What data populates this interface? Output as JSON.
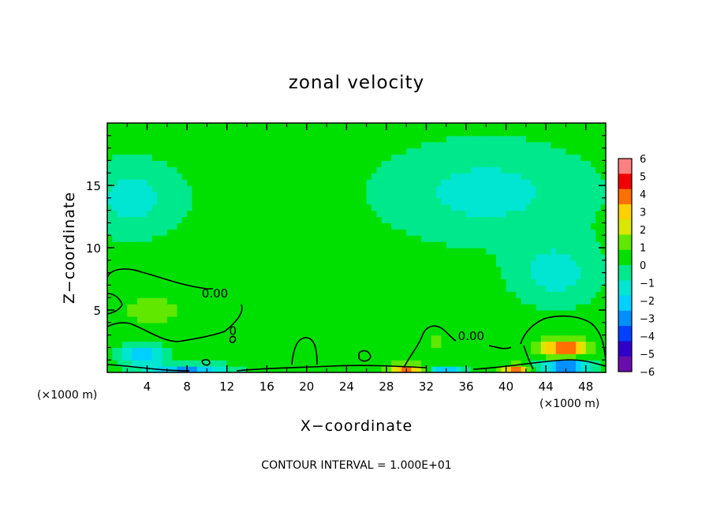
{
  "chart_data": {
    "type": "heatmap",
    "title": "zonal velocity",
    "xlabel": "X−coordinate",
    "ylabel": "Z−coordinate",
    "x_unit_left": "(×1000 m)",
    "x_unit_right": "(×1000 m)",
    "footer": "CONTOUR INTERVAL = 1.000E+01",
    "xlim": [
      0,
      50
    ],
    "ylim": [
      0,
      20
    ],
    "x_ticks": [
      4,
      8,
      12,
      16,
      20,
      24,
      28,
      32,
      36,
      40,
      44,
      48
    ],
    "x_tick_labels": [
      "4",
      "8",
      "12",
      "16",
      "20",
      "24",
      "28",
      "32",
      "36",
      "40",
      "44",
      "48"
    ],
    "y_ticks": [
      5,
      10,
      15
    ],
    "y_tick_labels": [
      "5",
      "10",
      "15"
    ],
    "colorbar": {
      "min": -6,
      "max": 6,
      "tick_values": [
        6,
        5,
        4,
        3,
        2,
        1,
        0,
        -1,
        -2,
        -3,
        -4,
        -5,
        -6
      ],
      "tick_labels": [
        "6",
        "5",
        "4",
        "3",
        "2",
        "1",
        "0",
        "−1",
        "−2",
        "−3",
        "−4",
        "−5",
        "−6"
      ],
      "colors": [
        "#6a0dad",
        "#2e00c8",
        "#0040ff",
        "#0090ff",
        "#00d0ff",
        "#00e6d2",
        "#00e88c",
        "#00e000",
        "#60e800",
        "#d8e800",
        "#ffd000",
        "#ff7000",
        "#f00000",
        "#ff8080"
      ]
    },
    "contour_labels": [
      {
        "text": "0.00",
        "x": 10.8,
        "z": 6.0
      },
      {
        "text": "0.00",
        "x": 36.5,
        "z": 2.6
      },
      {
        "text": "0",
        "x": 12.6,
        "z": 3.0
      }
    ],
    "background_value": 0.4,
    "features": [
      {
        "x": 2.5,
        "z": 14.0,
        "rx": 6.0,
        "rz": 3.5,
        "value": -1.2
      },
      {
        "x": 3.5,
        "z": 1.5,
        "rx": 2.5,
        "rz": 1.0,
        "value": -2.5
      },
      {
        "x": 4.5,
        "z": 5.0,
        "rx": 6.0,
        "rz": 2.2,
        "value": 1.0
      },
      {
        "x": 8.0,
        "z": 0.2,
        "rx": 5.0,
        "rz": 0.6,
        "value": -2.8
      },
      {
        "x": 20.0,
        "z": 1.8,
        "rx": 1.6,
        "rz": 1.6,
        "value": 0.8
      },
      {
        "x": 30.0,
        "z": 0.3,
        "rx": 2.0,
        "rz": 0.5,
        "value": 4.0
      },
      {
        "x": 33.0,
        "z": 2.5,
        "rx": 2.8,
        "rz": 2.0,
        "value": 0.9
      },
      {
        "x": 34.0,
        "z": 0.3,
        "rx": 2.0,
        "rz": 0.4,
        "value": -2.5
      },
      {
        "x": 41.0,
        "z": 0.3,
        "rx": 1.5,
        "rz": 0.4,
        "value": 4.0
      },
      {
        "x": 38.0,
        "z": 14.5,
        "rx": 12.0,
        "rz": 4.5,
        "value": -1.2
      },
      {
        "x": 45.0,
        "z": 8.0,
        "rx": 5.0,
        "rz": 3.0,
        "value": -1.3
      },
      {
        "x": 45.8,
        "z": 2.0,
        "rx": 2.8,
        "rz": 0.8,
        "value": 4.5
      },
      {
        "x": 46.0,
        "z": 0.5,
        "rx": 2.8,
        "rz": 0.6,
        "value": -4.0
      }
    ]
  }
}
